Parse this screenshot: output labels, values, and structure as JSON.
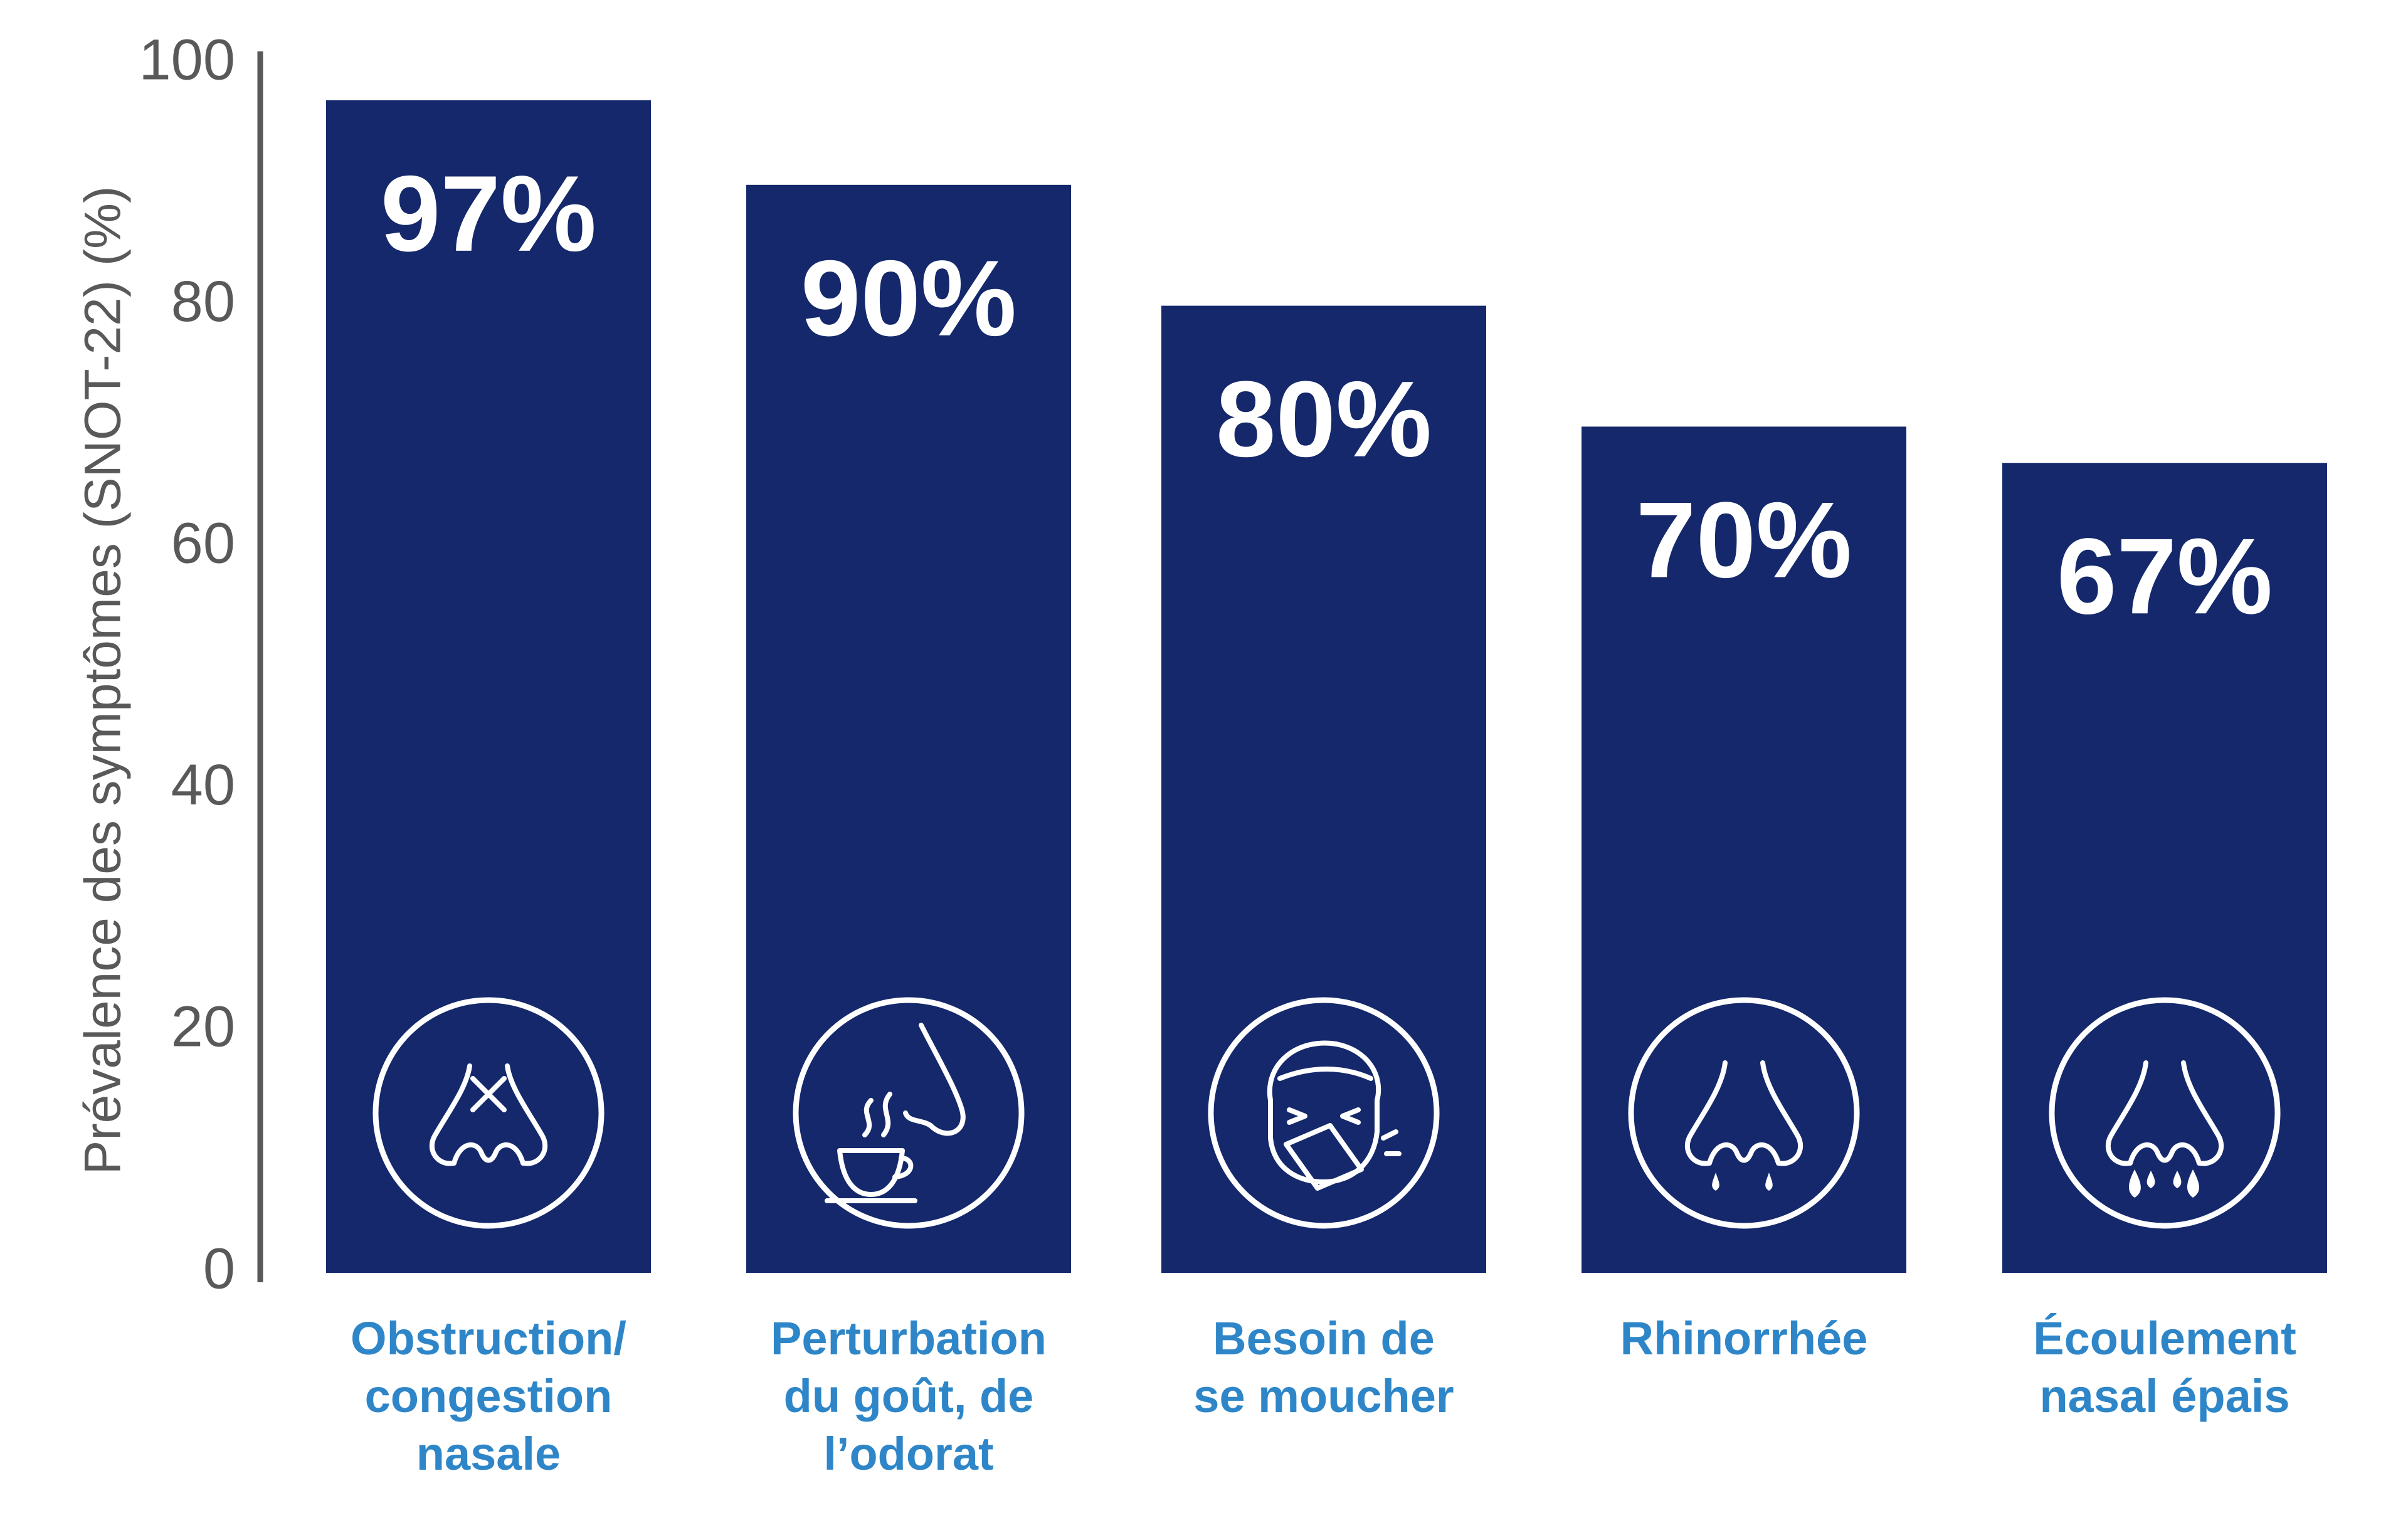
{
  "chart_data": {
    "type": "bar",
    "title": "",
    "xlabel": "",
    "ylabel": "Prévalence des symptômes (SNOT-22) (%)",
    "ylim": [
      0,
      100
    ],
    "yticks": [
      0,
      20,
      40,
      60,
      80,
      100
    ],
    "grid": false,
    "categories": [
      [
        "Obstruction/",
        "congestion",
        "nasale"
      ],
      [
        "Perturbation",
        "du goût, de",
        "l’odorat"
      ],
      [
        "Besoin de",
        "se moucher"
      ],
      [
        "Rhinorrhée"
      ],
      [
        "Écoulement",
        "nasal épais"
      ]
    ],
    "values": [
      97,
      90,
      80,
      70,
      67
    ],
    "data_labels": [
      "97%",
      "90%",
      "80%",
      "70%",
      "67%"
    ],
    "icons": [
      "blocked-nose-icon",
      "smell-coffee-icon",
      "sneezing-tissue-icon",
      "runny-nose-icon",
      "thick-discharge-nose-icon"
    ],
    "colors": {
      "bar": "#14286b",
      "axis": "#595959",
      "category_label": "#2e86c8",
      "value_label": "#ffffff"
    }
  }
}
